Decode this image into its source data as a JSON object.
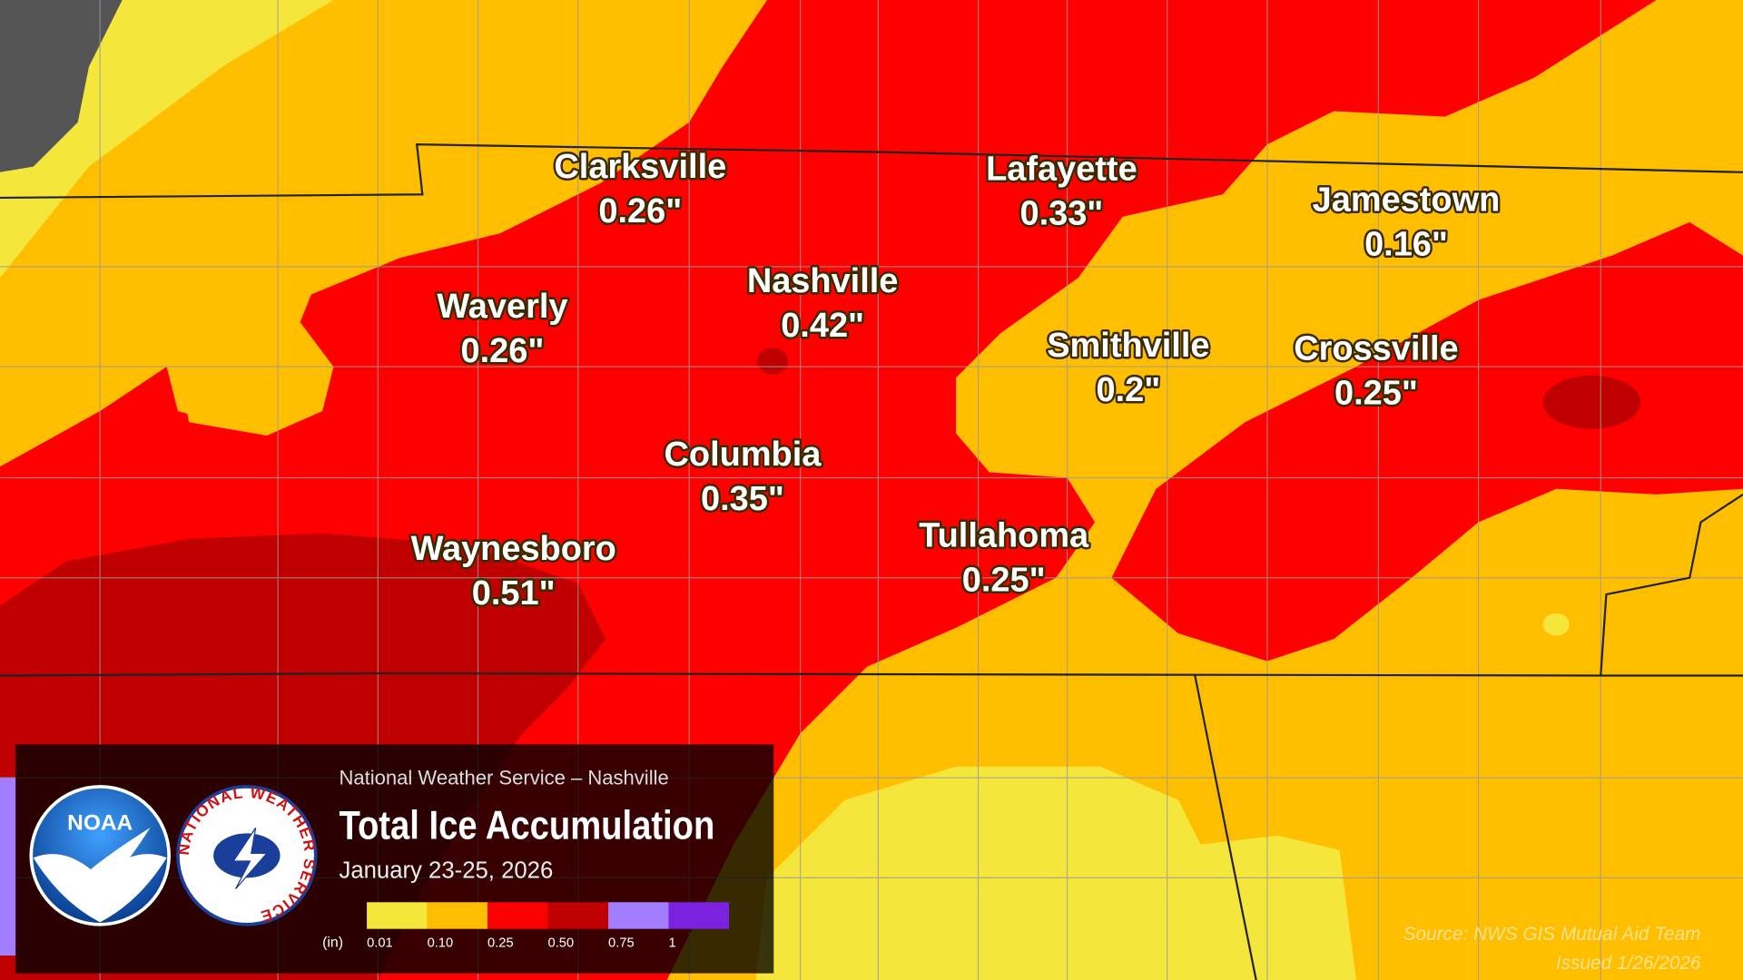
{
  "header": {
    "agency": "National Weather Service – Nashville",
    "title": "Total Ice Accumulation",
    "dates": "January 23-25, 2026"
  },
  "logos": {
    "noaa": "NOAA",
    "nws": "NATIONAL WEATHER SERVICE"
  },
  "legend": {
    "unit": "(in)",
    "ticks": [
      "0.01",
      "0.10",
      "0.25",
      "0.50",
      "0.75",
      "1"
    ],
    "colors": [
      "#f5e63c",
      "#ffbf00",
      "#ff0000",
      "#c00000",
      "#a27dff",
      "#7b22e0"
    ]
  },
  "cities": [
    {
      "name": "Clarksville",
      "amount": "0.26\""
    },
    {
      "name": "Lafayette",
      "amount": "0.33\""
    },
    {
      "name": "Jamestown",
      "amount": "0.16\""
    },
    {
      "name": "Nashville",
      "amount": "0.42\""
    },
    {
      "name": "Waverly",
      "amount": "0.26\""
    },
    {
      "name": "Smithville",
      "amount": "0.2\""
    },
    {
      "name": "Crossville",
      "amount": "0.25\""
    },
    {
      "name": "Columbia",
      "amount": "0.35\""
    },
    {
      "name": "Tullahoma",
      "amount": "0.25\""
    },
    {
      "name": "Waynesboro",
      "amount": "0.51\""
    }
  ],
  "source": "Source: NWS GIS Mutual Aid Team",
  "issued": "Issued 1/26/2026"
}
